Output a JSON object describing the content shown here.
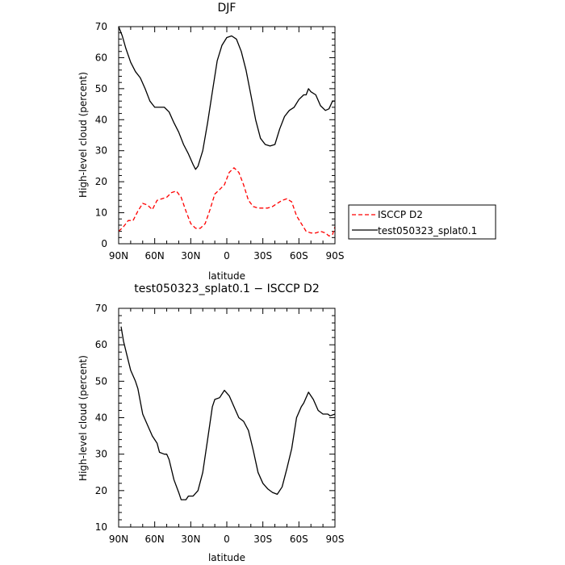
{
  "chart_data": [
    {
      "type": "line",
      "title": "DJF",
      "xlabel": "latitude",
      "ylabel": "High-level cloud (percent)",
      "xlim": [
        90,
        -90
      ],
      "ylim": [
        0,
        70
      ],
      "x_ticks": [
        90,
        60,
        30,
        0,
        -30,
        -60,
        -90
      ],
      "x_tick_labels": [
        "90N",
        "60N",
        "30N",
        "0",
        "30S",
        "60S",
        "90S"
      ],
      "y_ticks": [
        0,
        10,
        20,
        30,
        40,
        50,
        60,
        70
      ],
      "y_tick_labels": [
        "0",
        "10",
        "20",
        "30",
        "40",
        "50",
        "60",
        "70"
      ],
      "legend_position": "right",
      "series": [
        {
          "name": "ISCCP D2",
          "color": "#ff0000",
          "dash": "dashed",
          "points": [
            [
              90,
              4
            ],
            [
              86,
              5.5
            ],
            [
              82,
              7.5
            ],
            [
              78,
              7.5
            ],
            [
              74,
              10.5
            ],
            [
              70,
              13
            ],
            [
              66,
              12.5
            ],
            [
              62,
              11
            ],
            [
              58,
              14
            ],
            [
              54,
              14.5
            ],
            [
              50,
              15
            ],
            [
              46,
              16.5
            ],
            [
              42,
              17
            ],
            [
              38,
              15
            ],
            [
              34,
              10.5
            ],
            [
              30,
              6.5
            ],
            [
              26,
              5
            ],
            [
              22,
              5
            ],
            [
              18,
              6.5
            ],
            [
              14,
              11
            ],
            [
              10,
              16
            ],
            [
              6,
              17.5
            ],
            [
              2,
              19
            ],
            [
              -2,
              23
            ],
            [
              -6,
              24.5
            ],
            [
              -10,
              23
            ],
            [
              -14,
              19
            ],
            [
              -18,
              14
            ],
            [
              -22,
              12
            ],
            [
              -26,
              11.5
            ],
            [
              -30,
              11.5
            ],
            [
              -34,
              11.5
            ],
            [
              -38,
              12
            ],
            [
              -42,
              13
            ],
            [
              -46,
              14
            ],
            [
              -50,
              14.5
            ],
            [
              -54,
              13.5
            ],
            [
              -58,
              9
            ],
            [
              -62,
              6.5
            ],
            [
              -66,
              4
            ],
            [
              -70,
              3.5
            ],
            [
              -74,
              3.5
            ],
            [
              -78,
              4
            ],
            [
              -82,
              3.5
            ],
            [
              -85,
              2.5
            ],
            [
              -88,
              3
            ],
            [
              -90,
              5.5
            ]
          ]
        },
        {
          "name": "test050323_splat0.1",
          "color": "#000000",
          "dash": "solid",
          "points": [
            [
              90,
              70
            ],
            [
              87,
              67
            ],
            [
              84,
              63
            ],
            [
              80,
              58.5
            ],
            [
              76,
              55.5
            ],
            [
              72,
              53.5
            ],
            [
              68,
              50
            ],
            [
              64,
              46
            ],
            [
              60,
              44
            ],
            [
              56,
              44
            ],
            [
              52,
              44
            ],
            [
              48,
              42.5
            ],
            [
              44,
              39
            ],
            [
              40,
              36
            ],
            [
              36,
              32
            ],
            [
              32,
              29
            ],
            [
              28,
              25.5
            ],
            [
              26,
              24
            ],
            [
              24,
              25
            ],
            [
              20,
              30
            ],
            [
              16,
              39
            ],
            [
              12,
              49
            ],
            [
              8,
              59
            ],
            [
              4,
              64
            ],
            [
              0,
              66.5
            ],
            [
              -4,
              67
            ],
            [
              -8,
              66
            ],
            [
              -12,
              62
            ],
            [
              -16,
              56
            ],
            [
              -20,
              48
            ],
            [
              -24,
              40
            ],
            [
              -28,
              34
            ],
            [
              -32,
              32
            ],
            [
              -36,
              31.5
            ],
            [
              -40,
              32
            ],
            [
              -44,
              37
            ],
            [
              -48,
              41
            ],
            [
              -52,
              43
            ],
            [
              -56,
              44
            ],
            [
              -60,
              46.5
            ],
            [
              -64,
              48
            ],
            [
              -66,
              48
            ],
            [
              -68,
              50
            ],
            [
              -70,
              49
            ],
            [
              -74,
              48
            ],
            [
              -78,
              44.5
            ],
            [
              -82,
              43
            ],
            [
              -85,
              43.5
            ],
            [
              -88,
              46
            ],
            [
              -90,
              46
            ]
          ]
        }
      ]
    },
    {
      "type": "line",
      "title": "test050323_splat0.1 − ISCCP D2",
      "xlabel": "latitude",
      "ylabel": "High-level cloud (percent)",
      "xlim": [
        90,
        -90
      ],
      "ylim": [
        10,
        70
      ],
      "x_ticks": [
        90,
        60,
        30,
        0,
        -30,
        -60,
        -90
      ],
      "x_tick_labels": [
        "90N",
        "60N",
        "30N",
        "0",
        "30S",
        "60S",
        "90S"
      ],
      "y_ticks": [
        10,
        20,
        30,
        40,
        50,
        60,
        70
      ],
      "y_tick_labels": [
        "10",
        "20",
        "30",
        "40",
        "50",
        "60",
        "70"
      ],
      "series": [
        {
          "color": "#000000",
          "dash": "solid",
          "points": [
            [
              88,
              65
            ],
            [
              86,
              61
            ],
            [
              83,
              57
            ],
            [
              80,
              53
            ],
            [
              76,
              50
            ],
            [
              74,
              48
            ],
            [
              70,
              41
            ],
            [
              66,
              38
            ],
            [
              62,
              35
            ],
            [
              58,
              33
            ],
            [
              56,
              30.5
            ],
            [
              52,
              30
            ],
            [
              50,
              30
            ],
            [
              48,
              28.5
            ],
            [
              44,
              23
            ],
            [
              40,
              19.5
            ],
            [
              38,
              17.5
            ],
            [
              34,
              17.5
            ],
            [
              32,
              18.5
            ],
            [
              28,
              18.5
            ],
            [
              24,
              20
            ],
            [
              20,
              25
            ],
            [
              16,
              34
            ],
            [
              12,
              43
            ],
            [
              10,
              45
            ],
            [
              6,
              45.5
            ],
            [
              2,
              47.5
            ],
            [
              -2,
              46
            ],
            [
              -6,
              43
            ],
            [
              -10,
              40
            ],
            [
              -14,
              39
            ],
            [
              -18,
              36.5
            ],
            [
              -22,
              31
            ],
            [
              -26,
              25
            ],
            [
              -30,
              22
            ],
            [
              -34,
              20.5
            ],
            [
              -38,
              19.5
            ],
            [
              -42,
              19
            ],
            [
              -46,
              21
            ],
            [
              -50,
              26
            ],
            [
              -54,
              31.5
            ],
            [
              -58,
              40
            ],
            [
              -62,
              43
            ],
            [
              -64,
              44
            ],
            [
              -68,
              47
            ],
            [
              -72,
              45
            ],
            [
              -76,
              42
            ],
            [
              -80,
              41
            ],
            [
              -84,
              41
            ],
            [
              -86,
              40.5
            ],
            [
              -90,
              41
            ]
          ]
        }
      ]
    }
  ]
}
